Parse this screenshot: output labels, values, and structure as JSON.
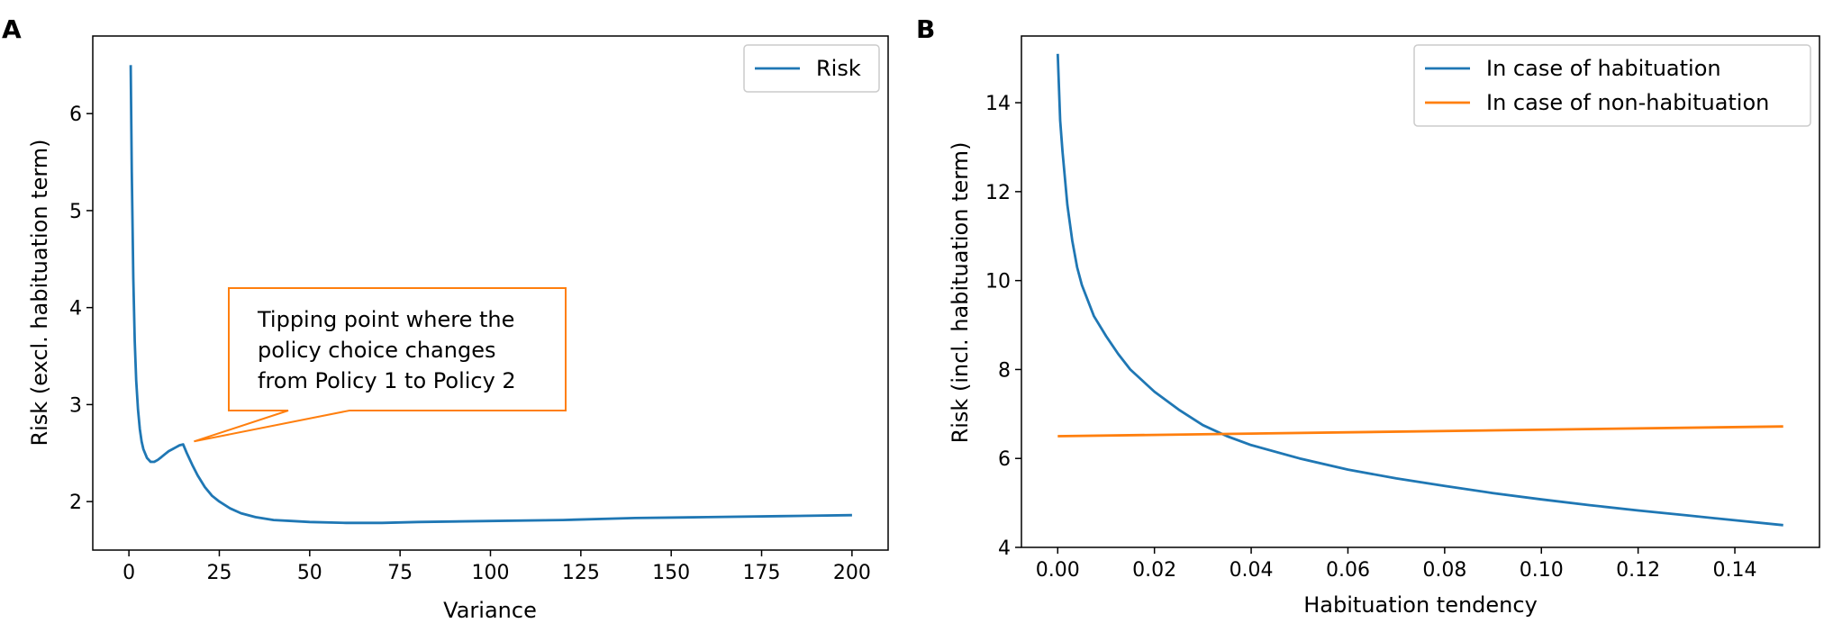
{
  "chart_data": [
    {
      "panel": "A",
      "type": "line",
      "xlabel": "Variance",
      "ylabel": "Risk (excl. habituation term)",
      "xlim": [
        -10,
        210
      ],
      "ylim": [
        1.5,
        6.8
      ],
      "xticks": [
        0,
        25,
        50,
        75,
        100,
        125,
        150,
        175,
        200
      ],
      "yticks": [
        2,
        3,
        4,
        5,
        6
      ],
      "legend_position": "top-right",
      "series": [
        {
          "name": "Risk",
          "color": "#1f77b4",
          "x": [
            0.5,
            0.8,
            1.2,
            1.6,
            2.0,
            2.5,
            3.0,
            3.5,
            4.0,
            5.0,
            6.0,
            7.0,
            8.0,
            9.0,
            10.0,
            11.0,
            12.0,
            13.0,
            14.0,
            15.0,
            16.0,
            17.5,
            19.0,
            21.0,
            23.0,
            25.0,
            28.0,
            31.0,
            35.0,
            40.0,
            45.0,
            50.0,
            60.0,
            70.0,
            80.0,
            100.0,
            120.0,
            140.0,
            160.0,
            180.0,
            200.0
          ],
          "y": [
            6.5,
            5.4,
            4.3,
            3.65,
            3.25,
            2.95,
            2.75,
            2.62,
            2.54,
            2.45,
            2.41,
            2.41,
            2.43,
            2.46,
            2.49,
            2.52,
            2.54,
            2.56,
            2.58,
            2.59,
            2.5,
            2.38,
            2.27,
            2.15,
            2.06,
            2.0,
            1.93,
            1.88,
            1.84,
            1.81,
            1.8,
            1.79,
            1.78,
            1.78,
            1.79,
            1.8,
            1.81,
            1.83,
            1.84,
            1.85,
            1.86
          ]
        }
      ],
      "annotation": {
        "lines": [
          "Tipping point where the",
          "policy choice changes",
          "from Policy 1 to Policy 2"
        ],
        "point": [
          18,
          2.62
        ],
        "color": "#ff7f0e"
      }
    },
    {
      "panel": "B",
      "type": "line",
      "xlabel": "Habituation tendency",
      "ylabel": "Risk (incl. habituation term)",
      "xlim": [
        -0.0075,
        0.1575
      ],
      "ylim": [
        4.0,
        15.5
      ],
      "xticks": [
        "0.00",
        "0.02",
        "0.04",
        "0.06",
        "0.08",
        "0.10",
        "0.12",
        "0.14"
      ],
      "yticks": [
        4,
        6,
        8,
        10,
        12,
        14
      ],
      "legend_position": "top-right",
      "series": [
        {
          "name": "In case of habituation",
          "color": "#1f77b4",
          "x": [
            0.0,
            0.0005,
            0.001,
            0.002,
            0.003,
            0.004,
            0.005,
            0.0075,
            0.01,
            0.0125,
            0.015,
            0.02,
            0.025,
            0.03,
            0.035,
            0.04,
            0.05,
            0.06,
            0.07,
            0.08,
            0.09,
            0.1,
            0.11,
            0.12,
            0.13,
            0.14,
            0.15
          ],
          "y": [
            15.1,
            13.6,
            12.9,
            11.7,
            10.9,
            10.3,
            9.9,
            9.2,
            8.75,
            8.35,
            8.0,
            7.5,
            7.1,
            6.75,
            6.5,
            6.3,
            6.0,
            5.75,
            5.55,
            5.38,
            5.22,
            5.08,
            4.95,
            4.83,
            4.72,
            4.61,
            4.5
          ]
        },
        {
          "name": "In case of non-habituation",
          "color": "#ff7f0e",
          "x": [
            0.0,
            0.15
          ],
          "y": [
            6.5,
            6.72
          ]
        }
      ]
    }
  ],
  "panel_labels": {
    "a": "A",
    "b": "B"
  },
  "annotation_text": {
    "line1": "Tipping point where the",
    "line2": "policy choice changes",
    "line3": "from Policy 1 to Policy 2"
  }
}
